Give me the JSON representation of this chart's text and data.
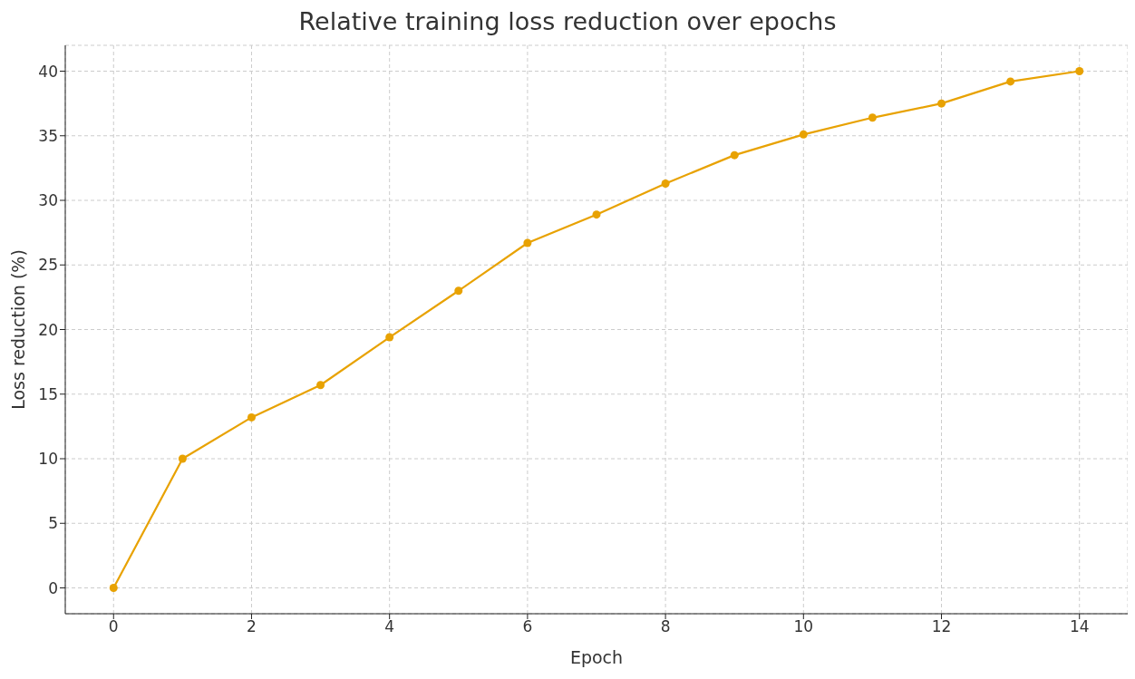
{
  "chart_data": {
    "type": "line",
    "title": "Relative training loss reduction over epochs",
    "xlabel": "Epoch",
    "ylabel": "Loss reduction (%)",
    "x": [
      0,
      1,
      2,
      3,
      4,
      5,
      6,
      7,
      8,
      9,
      10,
      11,
      12,
      13,
      14
    ],
    "series": [
      {
        "color": "#e8a202",
        "values": [
          0,
          10.0,
          13.2,
          15.7,
          19.4,
          23.0,
          26.7,
          28.9,
          31.3,
          33.5,
          35.1,
          36.4,
          37.5,
          39.2,
          40.0
        ]
      }
    ],
    "xlim": [
      -0.7,
      14.7
    ],
    "xticks": [
      0,
      2,
      4,
      6,
      8,
      10,
      12,
      14
    ],
    "ylim": [
      -2,
      42
    ],
    "yticks": [
      0,
      5,
      10,
      15,
      20,
      25,
      30,
      35,
      40
    ],
    "grid": true,
    "marker": "circle",
    "line_style": "solid"
  }
}
